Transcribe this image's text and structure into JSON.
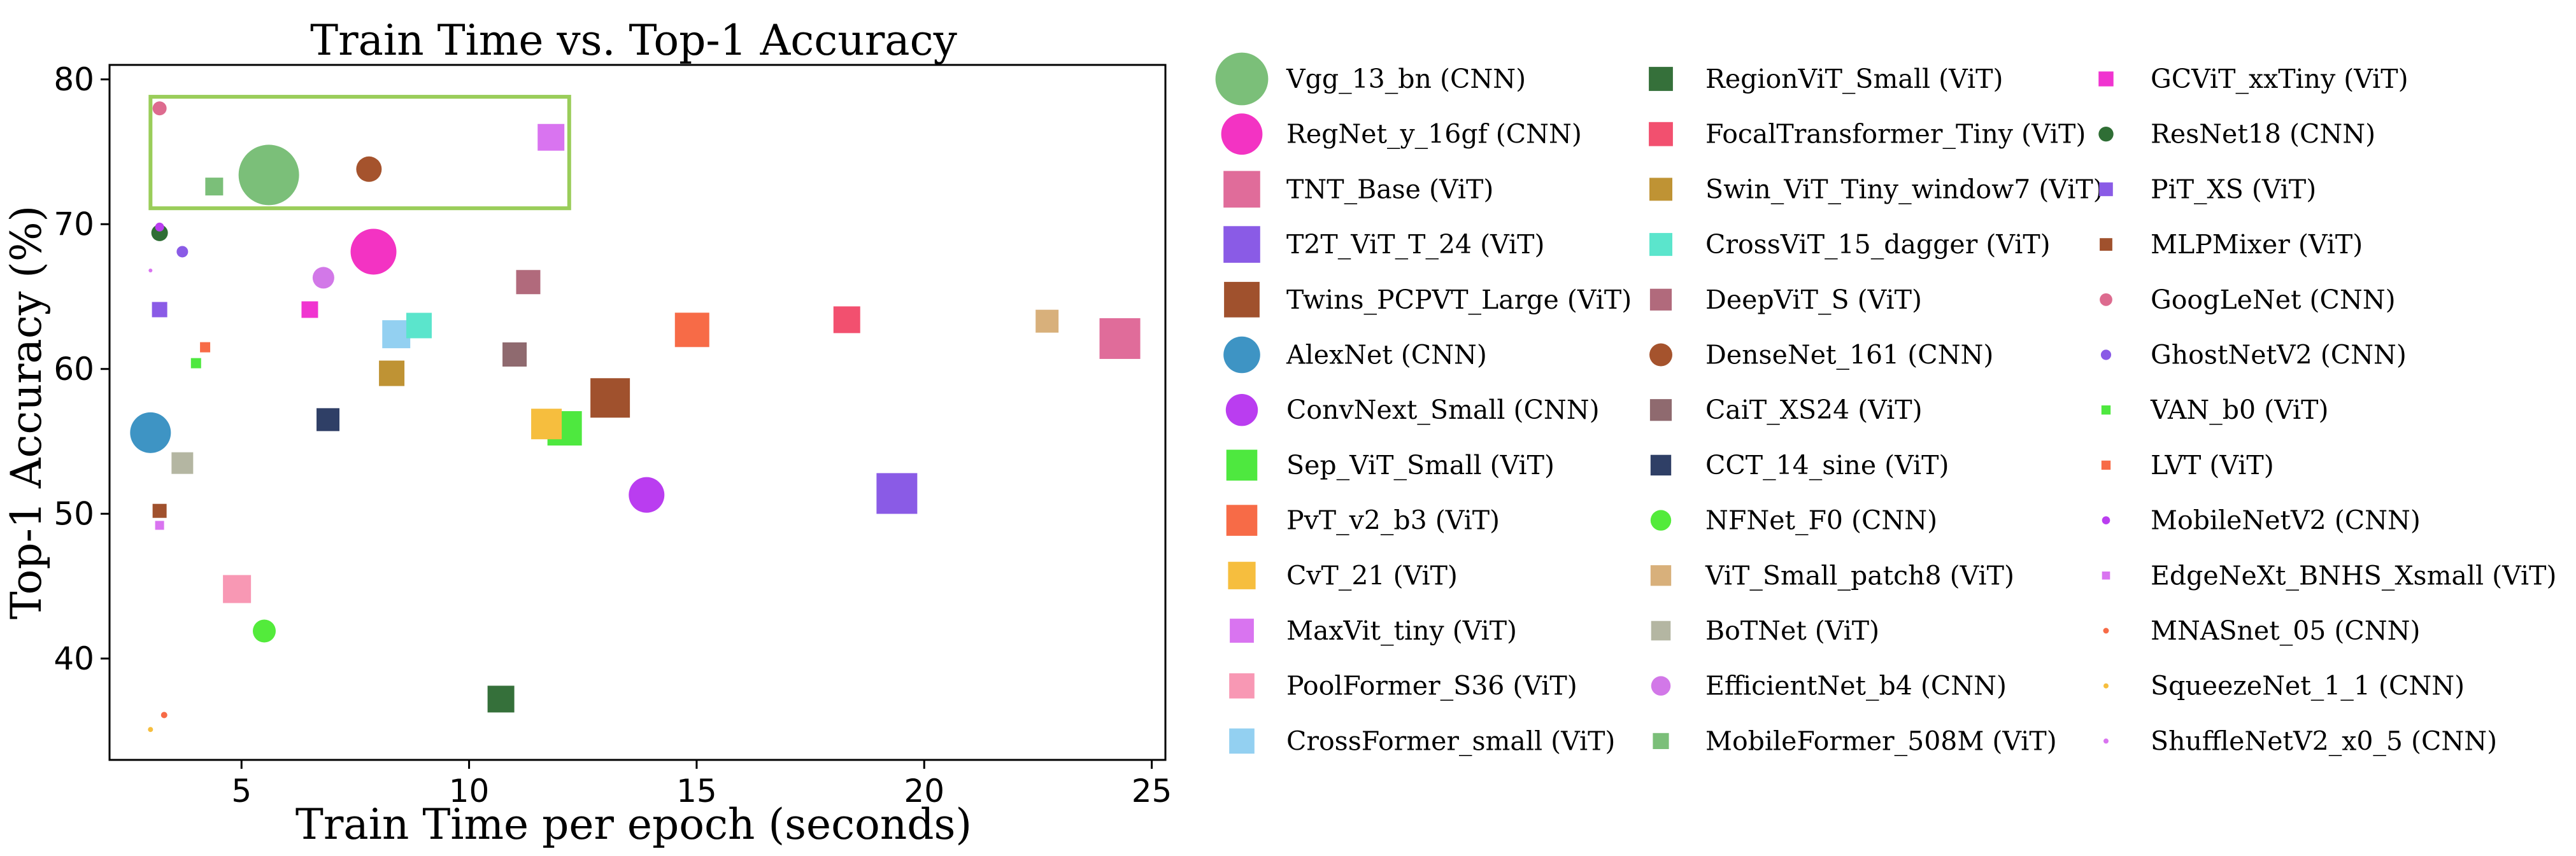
{
  "chart_data": {
    "type": "scatter",
    "title": "Train Time vs. Top-1 Accuracy",
    "xlabel": "Train Time per epoch (seconds)",
    "ylabel": "Top-1 Accuracy (%)",
    "xlim": [
      2.1,
      25.3
    ],
    "ylim": [
      33.0,
      81.0
    ],
    "xticks": [
      5,
      10,
      15,
      20,
      25
    ],
    "yticks": [
      40,
      50,
      60,
      70,
      80
    ],
    "grid": false,
    "legend_position": "right",
    "highlight_box": {
      "x_range": [
        3.0,
        12.2
      ],
      "y_range": [
        71.1,
        78.8
      ],
      "color": "#9ACD5A"
    },
    "series": [
      {
        "name": "Vgg_13_bn (CNN)",
        "marker": "circle",
        "color": "#7BBF79",
        "x": 5.6,
        "y": 73.4,
        "size": 95
      },
      {
        "name": "RegNet_y_16gf (CNN)",
        "marker": "circle",
        "color": "#F333C3",
        "x": 7.9,
        "y": 68.1,
        "size": 72
      },
      {
        "name": "TNT_Base (ViT)",
        "marker": "square",
        "color": "#E06C9A",
        "x": 24.3,
        "y": 62.1,
        "size": 64
      },
      {
        "name": "T2T_ViT_T_24 (ViT)",
        "marker": "square",
        "color": "#8A5BE6",
        "x": 19.4,
        "y": 51.4,
        "size": 64
      },
      {
        "name": "Twins_PCPVT_Large (ViT)",
        "marker": "square",
        "color": "#A0512D",
        "x": 13.1,
        "y": 58.0,
        "size": 62
      },
      {
        "name": "AlexNet (CNN)",
        "marker": "circle",
        "color": "#3E94C4",
        "x": 3.0,
        "y": 55.6,
        "size": 64
      },
      {
        "name": "ConvNext_Small (CNN)",
        "marker": "circle",
        "color": "#BA3DF0",
        "x": 13.9,
        "y": 51.3,
        "size": 56
      },
      {
        "name": "Sep_ViT_Small (ViT)",
        "marker": "square",
        "color": "#4EE83F",
        "x": 12.1,
        "y": 55.9,
        "size": 54
      },
      {
        "name": "PvT_v2_b3 (ViT)",
        "marker": "square",
        "color": "#F76B47",
        "x": 14.9,
        "y": 62.7,
        "size": 54
      },
      {
        "name": "CvT_21 (ViT)",
        "marker": "square",
        "color": "#F6BE3E",
        "x": 11.7,
        "y": 56.2,
        "size": 48
      },
      {
        "name": "MaxVit_tiny (ViT)",
        "marker": "square",
        "color": "#D974F0",
        "x": 11.8,
        "y": 76.0,
        "size": 42
      },
      {
        "name": "PoolFormer_S36 (ViT)",
        "marker": "square",
        "color": "#F898B4",
        "x": 4.9,
        "y": 44.8,
        "size": 44
      },
      {
        "name": "CrossFormer_small (ViT)",
        "marker": "square",
        "color": "#93D0F1",
        "x": 8.4,
        "y": 62.4,
        "size": 44
      },
      {
        "name": "RegionViT_Small (ViT)",
        "marker": "square",
        "color": "#35703A",
        "x": 10.7,
        "y": 37.2,
        "size": 42
      },
      {
        "name": "FocalTransformer_Tiny (ViT)",
        "marker": "square",
        "color": "#F2506F",
        "x": 18.3,
        "y": 63.4,
        "size": 42
      },
      {
        "name": "Swin_ViT_Tiny_window7 (ViT)",
        "marker": "square",
        "color": "#BF9334",
        "x": 8.3,
        "y": 59.7,
        "size": 40
      },
      {
        "name": "CrossViT_15_dagger (ViT)",
        "marker": "square",
        "color": "#5BE5CC",
        "x": 8.9,
        "y": 63.0,
        "size": 40
      },
      {
        "name": "DeepViT_S (ViT)",
        "marker": "square",
        "color": "#B16A7C",
        "x": 11.3,
        "y": 66.0,
        "size": 38
      },
      {
        "name": "DenseNet_161 (CNN)",
        "marker": "circle",
        "color": "#A5532D",
        "x": 7.8,
        "y": 73.8,
        "size": 40
      },
      {
        "name": "CaiT_XS24 (ViT)",
        "marker": "square",
        "color": "#8F6A6F",
        "x": 11.0,
        "y": 61.0,
        "size": 38
      },
      {
        "name": "CCT_14_sine (ViT)",
        "marker": "square",
        "color": "#2F3F66",
        "x": 6.9,
        "y": 56.5,
        "size": 36
      },
      {
        "name": "NFNet_F0 (CNN)",
        "marker": "circle",
        "color": "#53EB3B",
        "x": 5.5,
        "y": 41.9,
        "size": 36
      },
      {
        "name": "ViT_Small_patch8 (ViT)",
        "marker": "square",
        "color": "#D8B07B",
        "x": 22.7,
        "y": 63.3,
        "size": 36
      },
      {
        "name": "BoTNet (ViT)",
        "marker": "square",
        "color": "#B4B6A2",
        "x": 3.7,
        "y": 53.5,
        "size": 34
      },
      {
        "name": "EfficientNet_b4 (CNN)",
        "marker": "circle",
        "color": "#D278E8",
        "x": 6.8,
        "y": 66.3,
        "size": 34
      },
      {
        "name": "MobileFormer_508M (ViT)",
        "marker": "square",
        "color": "#7BBF79",
        "x": 4.4,
        "y": 72.6,
        "size": 28
      },
      {
        "name": "GCViT_xxTiny (ViT)",
        "marker": "square",
        "color": "#F034D0",
        "x": 6.5,
        "y": 64.1,
        "size": 26
      },
      {
        "name": "ResNet18 (CNN)",
        "marker": "circle",
        "color": "#2F6E35",
        "x": 3.2,
        "y": 69.4,
        "size": 26
      },
      {
        "name": "PiT_XS (ViT)",
        "marker": "square",
        "color": "#8A5BE6",
        "x": 3.2,
        "y": 64.1,
        "size": 24
      },
      {
        "name": "MLPMixer (ViT)",
        "marker": "square",
        "color": "#A0512D",
        "x": 3.2,
        "y": 50.2,
        "size": 22
      },
      {
        "name": "GoogLeNet (CNN)",
        "marker": "circle",
        "color": "#DD6B8F",
        "x": 3.2,
        "y": 78.0,
        "size": 22
      },
      {
        "name": "GhostNetV2 (CNN)",
        "marker": "circle",
        "color": "#8A5BE6",
        "x": 3.7,
        "y": 68.1,
        "size": 18
      },
      {
        "name": "VAN_b0 (ViT)",
        "marker": "square",
        "color": "#4EE83F",
        "x": 4.0,
        "y": 60.4,
        "size": 16
      },
      {
        "name": "LVT (ViT)",
        "marker": "square",
        "color": "#F76B47",
        "x": 4.2,
        "y": 61.5,
        "size": 16
      },
      {
        "name": "MobileNetV2 (CNN)",
        "marker": "circle",
        "color": "#BA3DF0",
        "x": 3.2,
        "y": 69.8,
        "size": 14
      },
      {
        "name": "EdgeNeXt_BNHS_Xsmall (ViT)",
        "marker": "square",
        "color": "#D974F0",
        "x": 3.2,
        "y": 49.2,
        "size": 14
      },
      {
        "name": "MNASnet_05 (CNN)",
        "marker": "circle",
        "color": "#F76B47",
        "x": 3.3,
        "y": 36.1,
        "size": 10
      },
      {
        "name": "SqueezeNet_1_1 (CNN)",
        "marker": "circle",
        "color": "#F6BE3E",
        "x": 3.0,
        "y": 35.1,
        "size": 8
      },
      {
        "name": "ShuffleNetV2_x0_5 (CNN)",
        "marker": "circle",
        "color": "#D974F0",
        "x": 3.0,
        "y": 66.8,
        "size": 6
      }
    ]
  }
}
